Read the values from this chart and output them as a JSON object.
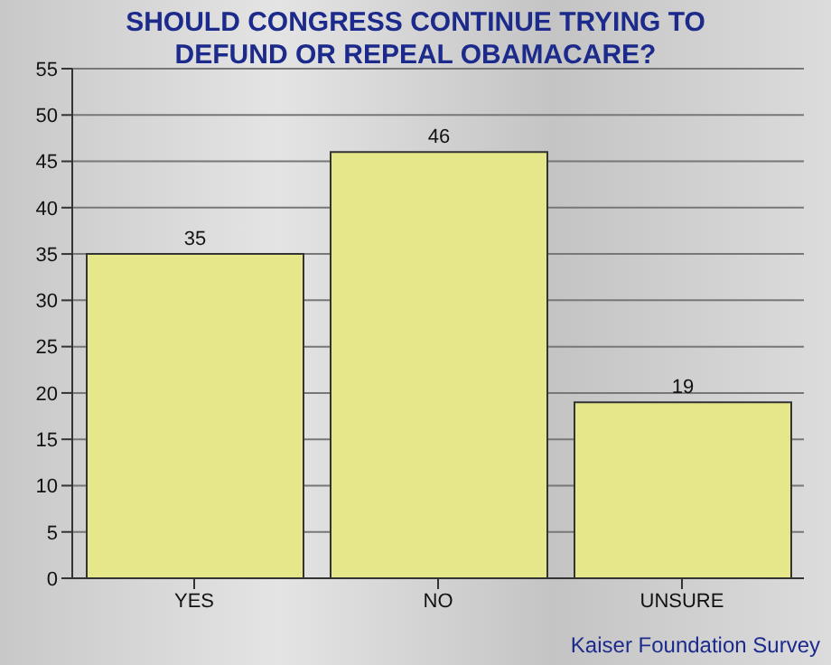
{
  "chart_data": {
    "type": "bar",
    "title": "SHOULD CONGRESS CONTINUE TRYING TO DEFUND OR REPEAL OBAMACARE?",
    "categories": [
      "YES",
      "NO",
      "UNSURE"
    ],
    "values": [
      35,
      46,
      19
    ],
    "color": "#e6e68a",
    "ylim": [
      0,
      55
    ],
    "yticks": [
      0,
      5,
      10,
      15,
      20,
      25,
      30,
      35,
      40,
      45,
      50,
      55
    ],
    "grid": "y",
    "data_labels": true,
    "annotations": [
      "Kaiser Foundation Survey"
    ]
  }
}
